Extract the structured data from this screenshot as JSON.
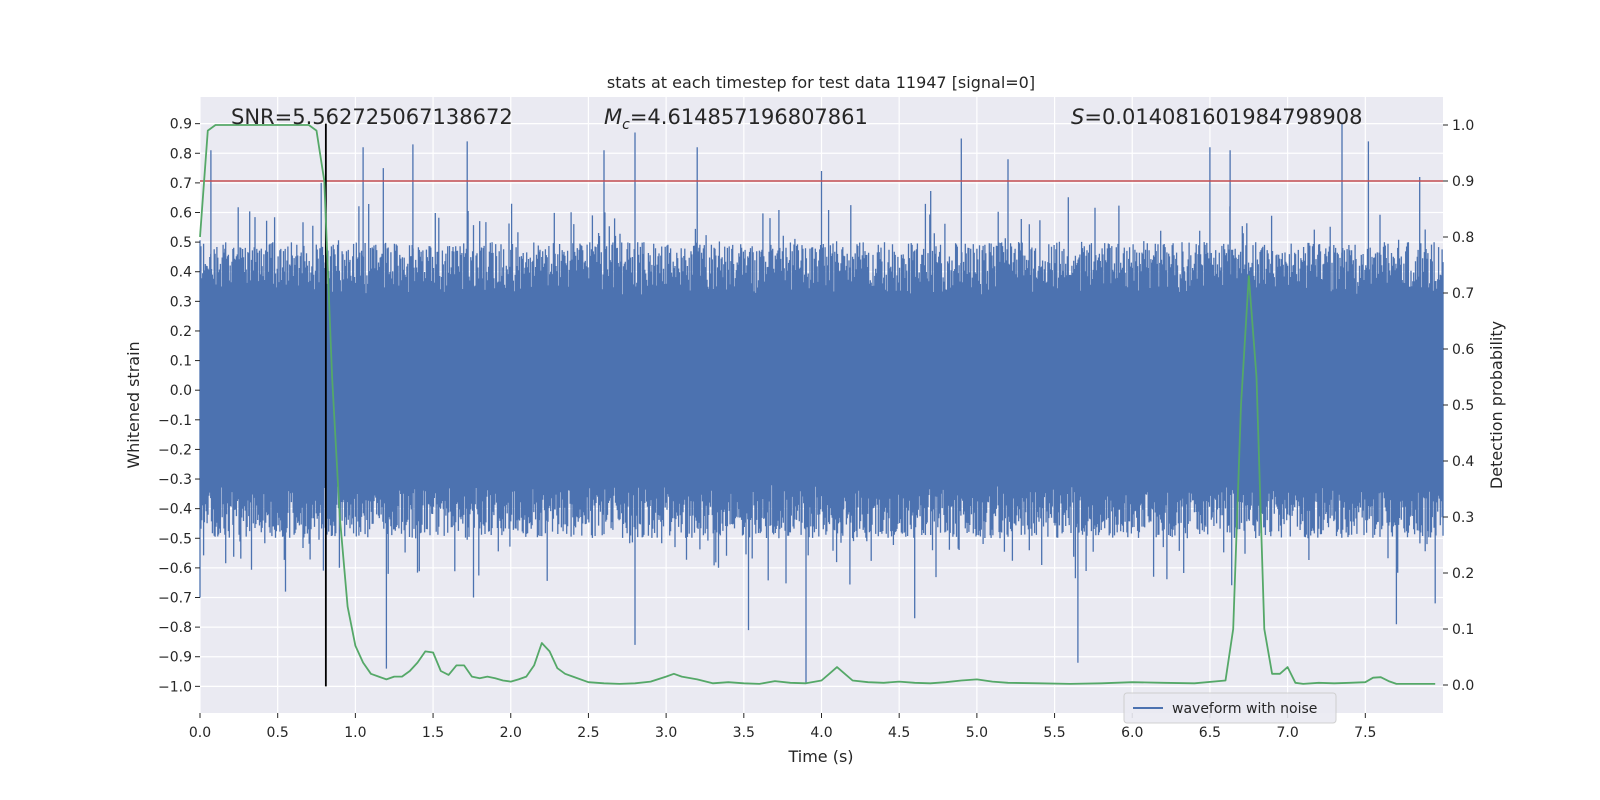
{
  "chart_data": {
    "type": "line",
    "title": "stats at each timestep for test data 11947 [signal=0]",
    "xlabel": "Time (s)",
    "ylabel_left": "Whitened strain",
    "ylabel_right": "Detection probability",
    "xlim": [
      0,
      8
    ],
    "ylim_left": [
      -1.09,
      0.99
    ],
    "ylim_right": [
      -0.05,
      1.05
    ],
    "x_ticks": [
      0.0,
      0.5,
      1.0,
      1.5,
      2.0,
      2.5,
      3.0,
      3.5,
      4.0,
      4.5,
      5.0,
      5.5,
      6.0,
      6.5,
      7.0,
      7.5
    ],
    "x_tick_labels": [
      "0.0",
      "0.5",
      "1.0",
      "1.5",
      "2.0",
      "2.5",
      "3.0",
      "3.5",
      "4.0",
      "4.5",
      "5.0",
      "5.5",
      "6.0",
      "6.5",
      "7.0",
      "7.5"
    ],
    "y_left_ticks": [
      0.9,
      0.8,
      0.7,
      0.6,
      0.5,
      0.4,
      0.3,
      0.2,
      0.1,
      0.0,
      -0.1,
      -0.2,
      -0.3,
      -0.4,
      -0.5,
      -0.6,
      -0.7,
      -0.8,
      -0.9,
      -1.0
    ],
    "y_left_tick_labels": [
      "0.9",
      "0.8",
      "0.7",
      "0.6",
      "0.5",
      "0.4",
      "0.3",
      "0.2",
      "0.1",
      "0.0",
      "−0.1",
      "−0.2",
      "−0.3",
      "−0.4",
      "−0.5",
      "−0.6",
      "−0.7",
      "−0.8",
      "−0.9",
      "−1.0"
    ],
    "y_right_ticks": [
      1.0,
      0.9,
      0.8,
      0.7,
      0.6,
      0.5,
      0.4,
      0.3,
      0.2,
      0.1,
      0.0
    ],
    "y_right_tick_labels": [
      "1.0",
      "0.9",
      "0.8",
      "0.7",
      "0.6",
      "0.5",
      "0.4",
      "0.3",
      "0.2",
      "0.1",
      "0.0"
    ],
    "annotations": {
      "snr": "SNR=5.562725067138672",
      "mc_symbol": "M",
      "mc_sub": "c",
      "mc_value": "=4.614857196807861",
      "s_symbol": "S",
      "s_value": "=0.014081601984798908"
    },
    "threshold": {
      "value": 0.9,
      "axis": "right",
      "color": "#c44e52"
    },
    "marker_line": {
      "x": 0.81,
      "color": "#000000"
    },
    "waveform": {
      "name": "waveform with noise",
      "color": "#4c72b0",
      "core_amplitude": 0.32,
      "typical_amplitude": 0.5,
      "peaks": [
        {
          "x": 0.07,
          "y": 0.81
        },
        {
          "x": 0.78,
          "y": 0.7
        },
        {
          "x": 1.05,
          "y": 0.82
        },
        {
          "x": 1.18,
          "y": 0.75
        },
        {
          "x": 1.37,
          "y": 0.83
        },
        {
          "x": 1.72,
          "y": 0.84
        },
        {
          "x": 2.6,
          "y": 0.81
        },
        {
          "x": 2.8,
          "y": 0.87
        },
        {
          "x": 3.2,
          "y": 0.82
        },
        {
          "x": 4.0,
          "y": 0.74
        },
        {
          "x": 4.9,
          "y": 0.85
        },
        {
          "x": 5.2,
          "y": 0.78
        },
        {
          "x": 6.5,
          "y": 0.82
        },
        {
          "x": 6.63,
          "y": 0.81
        },
        {
          "x": 7.35,
          "y": 0.9
        },
        {
          "x": 7.52,
          "y": 0.84
        },
        {
          "x": 7.85,
          "y": 0.72
        },
        {
          "x": 1.2,
          "y": -0.94
        },
        {
          "x": 2.8,
          "y": -0.86
        },
        {
          "x": 3.9,
          "y": -0.99
        },
        {
          "x": 5.65,
          "y": -0.92
        },
        {
          "x": 1.76,
          "y": -0.7
        },
        {
          "x": 3.53,
          "y": -0.81
        },
        {
          "x": 7.7,
          "y": -0.79
        },
        {
          "x": 0.55,
          "y": -0.68
        },
        {
          "x": 7.95,
          "y": -0.72
        },
        {
          "x": 4.6,
          "y": -0.77
        },
        {
          "x": 0.0,
          "y": -0.7
        }
      ]
    },
    "detection_probability": {
      "color": "#55a868",
      "x": [
        0.0,
        0.05,
        0.1,
        0.15,
        0.2,
        0.3,
        0.4,
        0.5,
        0.6,
        0.7,
        0.75,
        0.8,
        0.85,
        0.9,
        0.95,
        1.0,
        1.05,
        1.1,
        1.15,
        1.2,
        1.25,
        1.3,
        1.35,
        1.4,
        1.45,
        1.5,
        1.55,
        1.6,
        1.65,
        1.7,
        1.75,
        1.8,
        1.85,
        1.9,
        1.95,
        2.0,
        2.05,
        2.1,
        2.15,
        2.2,
        2.25,
        2.3,
        2.35,
        2.4,
        2.5,
        2.6,
        2.7,
        2.8,
        2.9,
        3.0,
        3.05,
        3.1,
        3.2,
        3.3,
        3.4,
        3.5,
        3.6,
        3.7,
        3.8,
        3.9,
        4.0,
        4.05,
        4.1,
        4.15,
        4.2,
        4.3,
        4.4,
        4.5,
        4.6,
        4.7,
        4.8,
        4.9,
        5.0,
        5.1,
        5.2,
        5.4,
        5.6,
        5.8,
        6.0,
        6.2,
        6.4,
        6.6,
        6.65,
        6.7,
        6.75,
        6.8,
        6.85,
        6.9,
        6.95,
        7.0,
        7.05,
        7.1,
        7.2,
        7.3,
        7.4,
        7.5,
        7.55,
        7.6,
        7.65,
        7.7,
        7.8,
        7.95
      ],
      "y": [
        0.8,
        0.99,
        1.0,
        1.0,
        1.0,
        1.0,
        1.0,
        1.0,
        1.0,
        1.0,
        0.99,
        0.9,
        0.55,
        0.3,
        0.14,
        0.07,
        0.04,
        0.02,
        0.015,
        0.01,
        0.015,
        0.015,
        0.025,
        0.04,
        0.06,
        0.058,
        0.025,
        0.018,
        0.035,
        0.035,
        0.015,
        0.012,
        0.015,
        0.012,
        0.008,
        0.006,
        0.01,
        0.015,
        0.035,
        0.075,
        0.06,
        0.03,
        0.02,
        0.015,
        0.005,
        0.003,
        0.002,
        0.003,
        0.006,
        0.015,
        0.02,
        0.015,
        0.01,
        0.003,
        0.005,
        0.003,
        0.002,
        0.007,
        0.004,
        0.003,
        0.008,
        0.02,
        0.032,
        0.02,
        0.008,
        0.005,
        0.004,
        0.006,
        0.004,
        0.003,
        0.005,
        0.008,
        0.01,
        0.006,
        0.004,
        0.003,
        0.002,
        0.003,
        0.005,
        0.004,
        0.003,
        0.008,
        0.1,
        0.5,
        0.73,
        0.55,
        0.1,
        0.02,
        0.02,
        0.032,
        0.004,
        0.002,
        0.004,
        0.003,
        0.004,
        0.005,
        0.013,
        0.014,
        0.007,
        0.002,
        0.002,
        0.002
      ]
    },
    "legend": {
      "position": "lower-right",
      "entries": [
        "waveform with noise"
      ]
    },
    "grid": true
  }
}
